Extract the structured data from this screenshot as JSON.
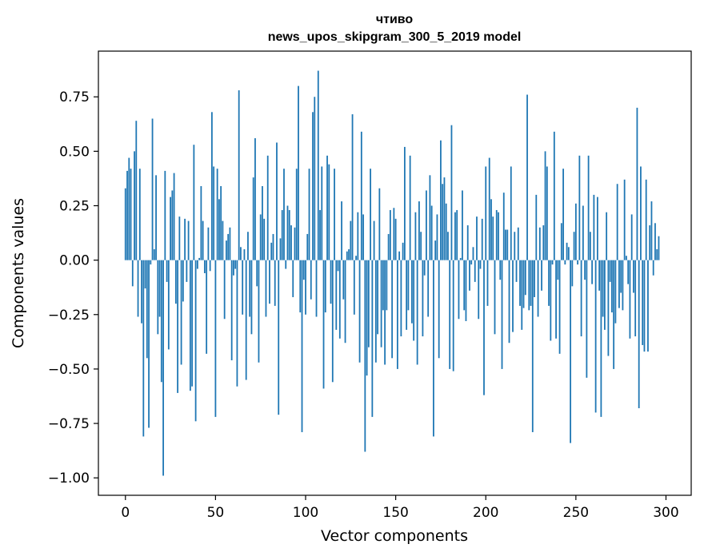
{
  "chart_data": {
    "type": "bar",
    "title": "чтиво",
    "subtitle": "news_upos_skipgram_300_5_2019 model",
    "xlabel": "Vector components",
    "ylabel": "Components values",
    "xlim": [
      -15,
      314
    ],
    "ylim": [
      -1.08,
      0.96
    ],
    "xticks": [
      0,
      50,
      100,
      150,
      200,
      250,
      300
    ],
    "yticks": [
      -1.0,
      -0.75,
      -0.5,
      -0.25,
      0.0,
      0.25,
      0.5,
      0.75
    ],
    "ytick_labels": [
      "−1.00",
      "−0.75",
      "−0.50",
      "−0.25",
      "0.00",
      "0.25",
      "0.50",
      "0.75"
    ],
    "bar_color": "#1f77b4",
    "values": [
      0.33,
      0.41,
      0.47,
      0.42,
      -0.12,
      0.5,
      0.64,
      -0.26,
      0.42,
      -0.29,
      -0.81,
      -0.13,
      -0.45,
      -0.77,
      -0.02,
      0.65,
      0.05,
      0.39,
      -0.34,
      -0.26,
      -0.56,
      -0.99,
      0.41,
      -0.1,
      -0.41,
      0.29,
      0.32,
      0.4,
      -0.2,
      -0.61,
      0.2,
      -0.48,
      -0.19,
      0.19,
      -0.1,
      0.18,
      -0.6,
      -0.58,
      0.53,
      -0.74,
      -0.04,
      0.01,
      0.34,
      0.18,
      -0.06,
      -0.43,
      0.15,
      -0.05,
      0.68,
      0.43,
      -0.72,
      0.42,
      0.28,
      0.34,
      0.18,
      -0.27,
      0.09,
      0.12,
      0.15,
      -0.46,
      -0.07,
      -0.04,
      -0.58,
      0.78,
      0.06,
      -0.25,
      0.05,
      -0.55,
      0.13,
      -0.26,
      -0.34,
      0.38,
      0.56,
      -0.12,
      -0.47,
      0.21,
      0.34,
      0.19,
      -0.26,
      0.48,
      -0.2,
      0.08,
      0.12,
      -0.21,
      0.54,
      -0.71,
      0.1,
      0.23,
      0.42,
      -0.04,
      0.25,
      0.23,
      0.16,
      -0.17,
      0.15,
      0.42,
      0.8,
      -0.24,
      -0.79,
      -0.09,
      -0.25,
      0.12,
      0.42,
      -0.18,
      0.68,
      0.75,
      -0.26,
      0.87,
      0.23,
      0.43,
      -0.59,
      -0.24,
      0.48,
      0.44,
      -0.2,
      -0.56,
      0.42,
      -0.32,
      -0.05,
      -0.36,
      0.27,
      -0.18,
      -0.38,
      0.04,
      0.05,
      0.18,
      0.67,
      -0.25,
      0.02,
      0.22,
      -0.47,
      0.59,
      0.21,
      -0.88,
      -0.53,
      -0.4,
      0.42,
      -0.72,
      0.18,
      -0.47,
      -0.34,
      0.33,
      -0.4,
      -0.23,
      -0.48,
      -0.23,
      0.12,
      0.23,
      -0.45,
      0.24,
      0.19,
      -0.5,
      0.04,
      -0.35,
      0.08,
      0.52,
      -0.32,
      -0.23,
      0.48,
      -0.29,
      -0.37,
      0.22,
      -0.48,
      0.27,
      0.13,
      -0.35,
      -0.07,
      0.32,
      -0.26,
      0.39,
      0.25,
      -0.81,
      0.09,
      0.21,
      -0.45,
      0.55,
      0.35,
      0.38,
      0.26,
      0.13,
      -0.5,
      0.62,
      -0.51,
      0.22,
      0.23,
      -0.27,
      0.01,
      0.32,
      -0.23,
      -0.28,
      0.16,
      -0.14,
      -0.02,
      0.06,
      -0.1,
      0.2,
      -0.27,
      -0.04,
      0.19,
      -0.62,
      0.43,
      -0.21,
      0.47,
      0.28,
      0.2,
      -0.34,
      0.23,
      0.22,
      -0.09,
      -0.5,
      0.31,
      0.14,
      0.14,
      -0.38,
      0.43,
      -0.33,
      0.13,
      -0.1,
      0.15,
      -0.21,
      -0.32,
      -0.22,
      -0.16,
      0.76,
      -0.23,
      -0.21,
      -0.79,
      -0.17,
      0.3,
      -0.26,
      0.15,
      -0.14,
      0.16,
      0.5,
      0.43,
      -0.21,
      -0.37,
      -0.02,
      0.59,
      -0.36,
      -0.09,
      -0.43,
      0.17,
      0.42,
      -0.02,
      0.08,
      0.06,
      -0.84,
      -0.12,
      0.13,
      0.26,
      -0.02,
      0.48,
      -0.35,
      0.25,
      -0.09,
      -0.54,
      0.48,
      0.13,
      -0.11,
      0.3,
      -0.7,
      0.29,
      -0.14,
      -0.72,
      -0.26,
      -0.32,
      0.22,
      -0.44,
      -0.1,
      -0.24,
      -0.5,
      -0.29,
      0.35,
      -0.22,
      -0.15,
      -0.23,
      0.37,
      0.02,
      -0.11,
      -0.36,
      0.21,
      -0.15,
      -0.35,
      0.7,
      -0.68,
      0.43,
      -0.39,
      -0.42,
      0.37,
      -0.42,
      0.16,
      0.27,
      -0.07,
      0.17,
      0.05,
      0.11
    ]
  }
}
